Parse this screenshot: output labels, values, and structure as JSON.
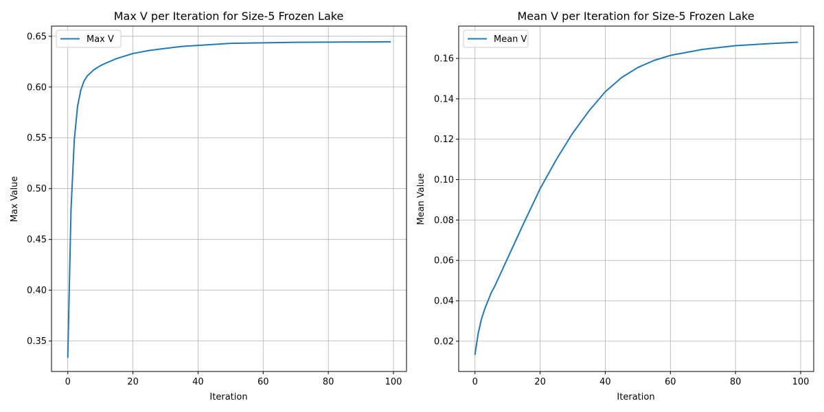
{
  "chart_data": [
    {
      "type": "line",
      "title": "Max V per Iteration for Size-5 Frozen Lake",
      "xlabel": "Iteration",
      "ylabel": "Max Value",
      "xlim": [
        -5,
        104
      ],
      "ylim": [
        0.32,
        0.66
      ],
      "xticks": [
        0,
        20,
        40,
        60,
        80,
        100
      ],
      "yticks": [
        0.35,
        0.4,
        0.45,
        0.5,
        0.55,
        0.6,
        0.65
      ],
      "ytick_decimals": 2,
      "grid": true,
      "legend_position": "upper left",
      "color": "#1f77b4",
      "series": [
        {
          "name": "Max V",
          "x": [
            0,
            1,
            2,
            3,
            4,
            5,
            6,
            7,
            8,
            10,
            12,
            15,
            20,
            25,
            30,
            35,
            40,
            45,
            50,
            60,
            70,
            80,
            90,
            99
          ],
          "y": [
            0.334,
            0.48,
            0.548,
            0.581,
            0.597,
            0.606,
            0.611,
            0.614,
            0.617,
            0.621,
            0.624,
            0.628,
            0.633,
            0.636,
            0.638,
            0.64,
            0.641,
            0.642,
            0.643,
            0.6435,
            0.644,
            0.6442,
            0.6444,
            0.6445
          ]
        }
      ]
    },
    {
      "type": "line",
      "title": "Mean V per Iteration for Size-5 Frozen Lake",
      "xlabel": "Iteration",
      "ylabel": "Mean Value",
      "xlim": [
        -5,
        104
      ],
      "ylim": [
        0.005,
        0.176
      ],
      "xticks": [
        0,
        20,
        40,
        60,
        80,
        100
      ],
      "yticks": [
        0.02,
        0.04,
        0.06,
        0.08,
        0.1,
        0.12,
        0.14,
        0.16
      ],
      "ytick_decimals": 2,
      "grid": true,
      "legend_position": "upper left",
      "color": "#1f77b4",
      "series": [
        {
          "name": "Mean V",
          "x": [
            0,
            1,
            2,
            3,
            4,
            5,
            6,
            8,
            10,
            12,
            15,
            20,
            25,
            30,
            35,
            40,
            45,
            50,
            55,
            60,
            70,
            80,
            90,
            99
          ],
          "y": [
            0.0135,
            0.024,
            0.031,
            0.036,
            0.04,
            0.044,
            0.047,
            0.054,
            0.061,
            0.068,
            0.0785,
            0.0955,
            0.11,
            0.123,
            0.134,
            0.1435,
            0.1505,
            0.1555,
            0.159,
            0.1615,
            0.1645,
            0.1663,
            0.1673,
            0.168
          ]
        }
      ]
    }
  ]
}
